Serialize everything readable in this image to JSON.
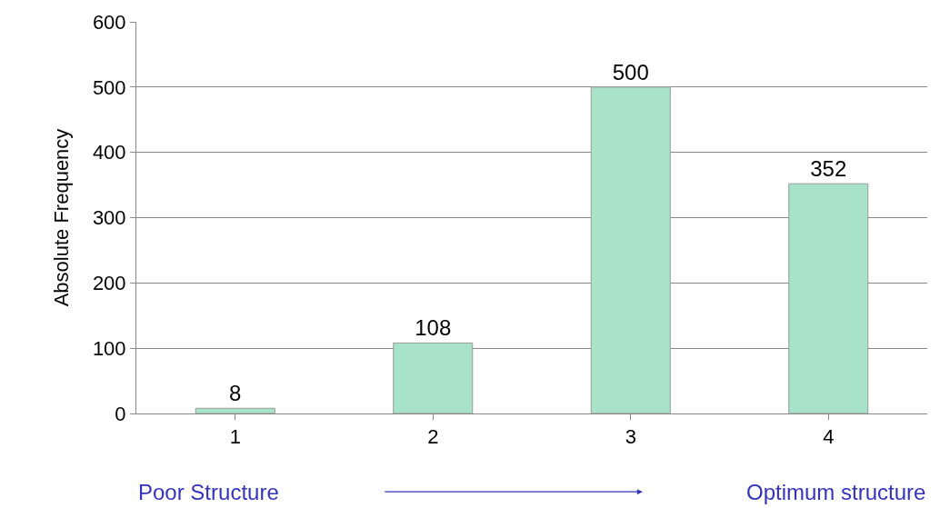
{
  "chart_data": {
    "type": "bar",
    "categories": [
      "1",
      "2",
      "3",
      "4"
    ],
    "values": [
      8,
      108,
      500,
      352
    ],
    "color": "#a8e2c8",
    "ylabel": "Absolute Frequency",
    "ylim": [
      0,
      600
    ],
    "yticks": [
      0,
      100,
      200,
      300,
      400,
      500,
      600
    ],
    "grid": "y",
    "data_labels": true,
    "annotations": [
      "Poor Structure",
      "Optimum structure"
    ]
  }
}
